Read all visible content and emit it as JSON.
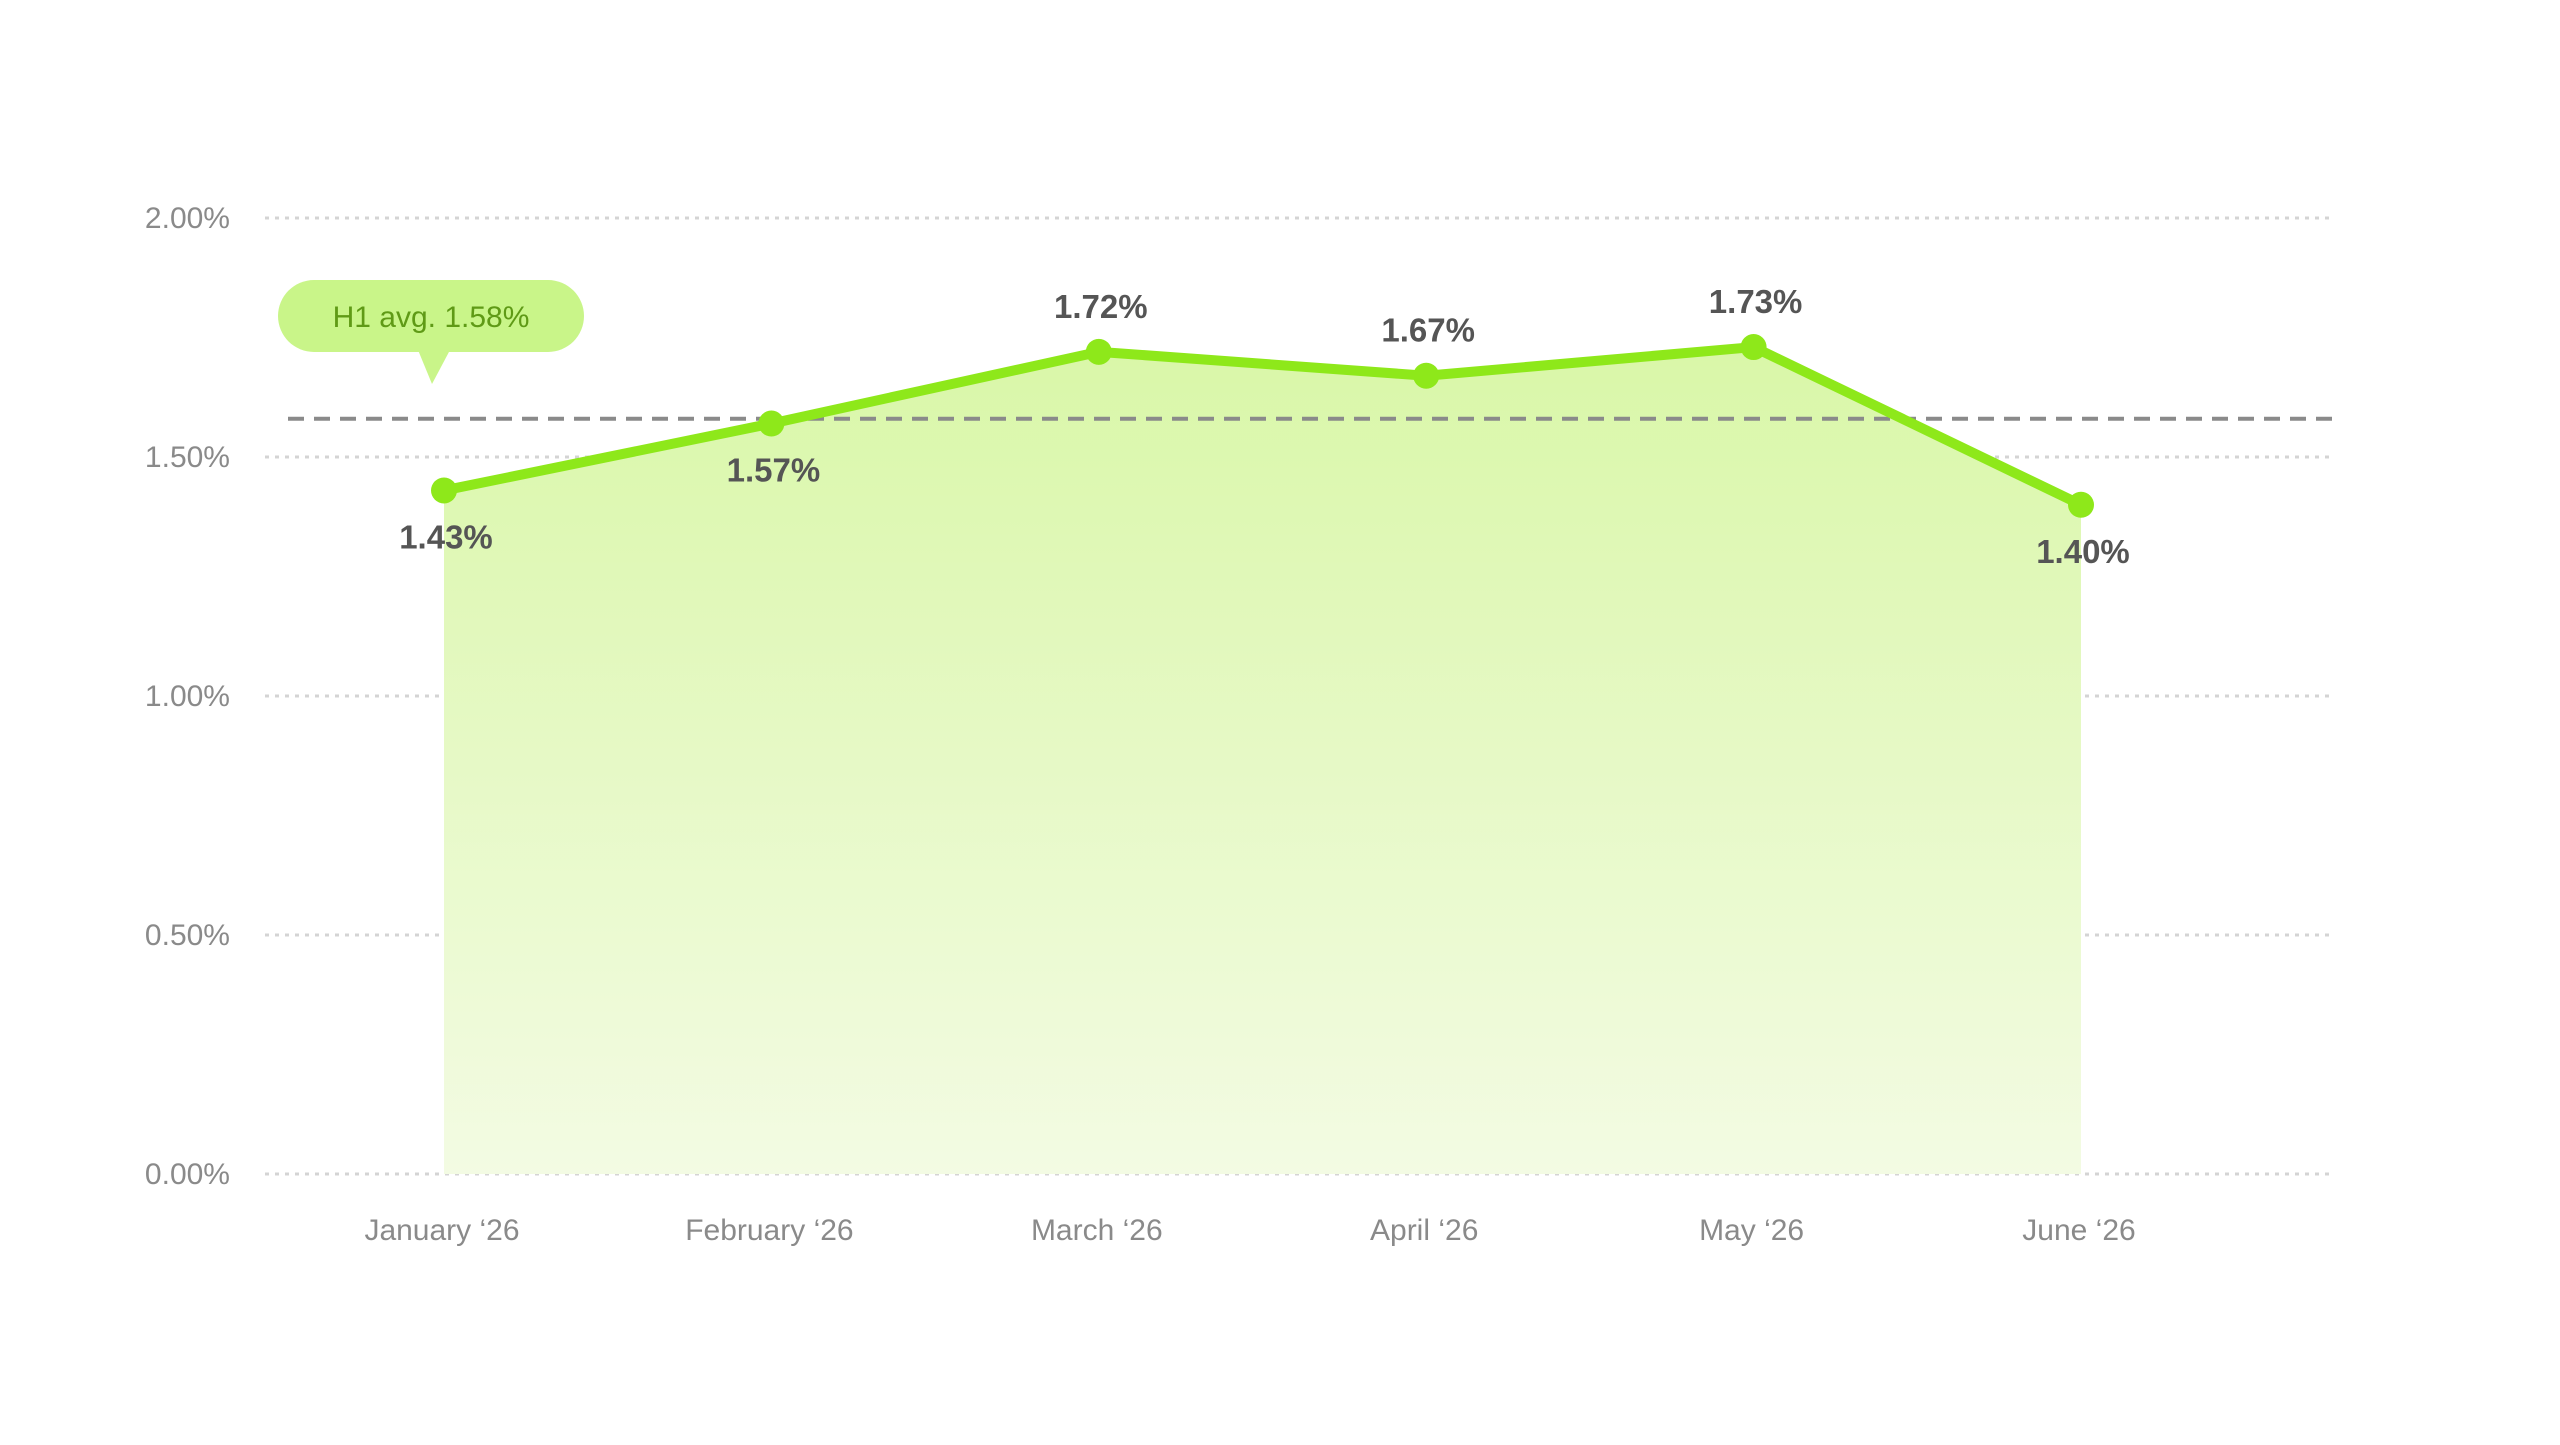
{
  "chart_data": {
    "type": "area",
    "title": "",
    "xlabel": "",
    "ylabel": "",
    "categories": [
      "January ‘26",
      "February ‘26",
      "March ‘26",
      "April ‘26",
      "May ‘26",
      "June ‘26"
    ],
    "series": [
      {
        "values": [
          1.43,
          1.57,
          1.72,
          1.67,
          1.73,
          1.4
        ],
        "labels": [
          "1.43%",
          "1.57%",
          "1.72%",
          "1.67%",
          "1.73%",
          "1.40%"
        ],
        "color": "#8ee81a"
      }
    ],
    "ylim": [
      0,
      2
    ],
    "y_ticks": [
      {
        "value": 0,
        "label": "0.00%"
      },
      {
        "value": 0.5,
        "label": "0.50%"
      },
      {
        "value": 1.0,
        "label": "1.00%"
      },
      {
        "value": 1.5,
        "label": "1.50%"
      },
      {
        "value": 2.0,
        "label": "2.00%"
      }
    ],
    "grid": true,
    "reference_line": {
      "value": 1.58,
      "label": "H1 avg. 1.58%",
      "style": "dashed",
      "color": "#8a8a8a"
    },
    "colors": {
      "line": "#8ee81a",
      "fill_top": "#d9f7a8",
      "fill_bottom": "#f3fbe3",
      "badge_fill": "#c9f589",
      "badge_text": "#5f9a16",
      "grid": "#d4d4d4"
    }
  }
}
